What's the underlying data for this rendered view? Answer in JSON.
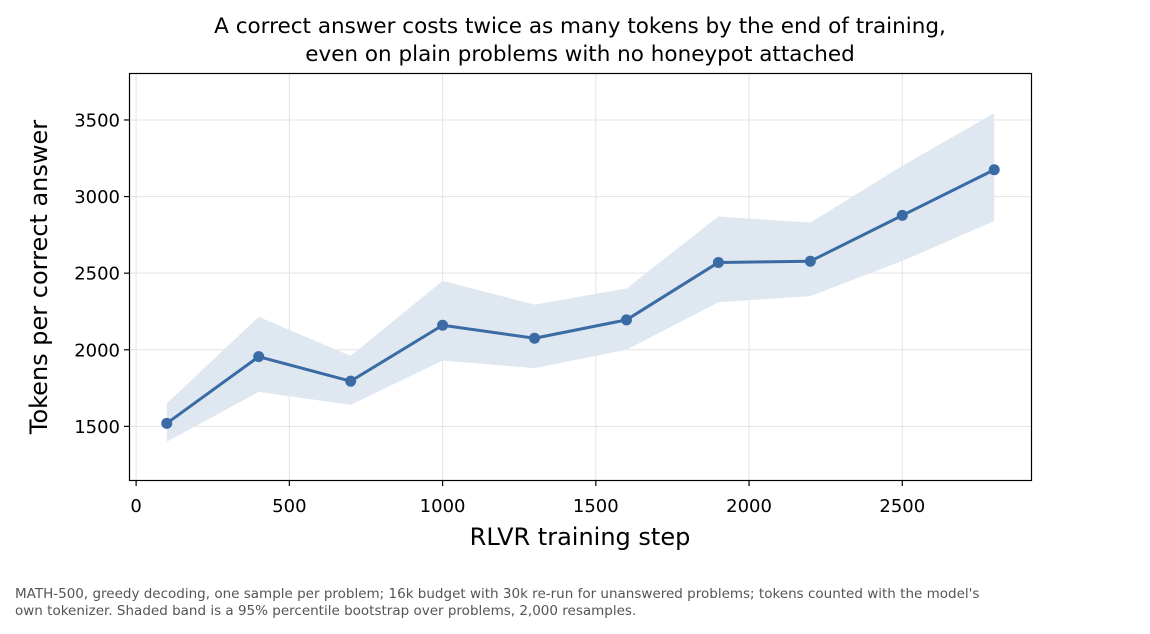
{
  "chart_data": {
    "type": "line",
    "title_lines": [
      "A correct answer costs twice as many tokens by the end of training,",
      "even on plain problems with no honeypot attached"
    ],
    "xlabel": "RLVR training step",
    "ylabel": "Tokens per correct answer",
    "xlim": [
      -20,
      2920
    ],
    "ylim": [
      1150,
      3800
    ],
    "xticks": [
      0,
      500,
      1000,
      1500,
      2000,
      2500
    ],
    "yticks": [
      1500,
      2000,
      2500,
      3000,
      3500
    ],
    "grid": true,
    "x": [
      100,
      400,
      700,
      1000,
      1300,
      1600,
      1900,
      2200,
      2500,
      2800
    ],
    "series": [
      {
        "values": [
          1520,
          1955,
          1795,
          2160,
          2075,
          2195,
          2570,
          2578,
          2877,
          3175
        ],
        "ci_lower": [
          1400,
          1725,
          1640,
          1930,
          1880,
          2000,
          2310,
          2350,
          2580,
          2840
        ],
        "ci_upper": [
          1650,
          2215,
          1960,
          2450,
          2295,
          2400,
          2870,
          2830,
          3200,
          3545
        ],
        "color": "#3a6ba5",
        "band_color": "#dfe7f0"
      }
    ]
  },
  "caption_lines": [
    "MATH-500, greedy decoding, one sample per problem; 16k budget with 30k re-run for unanswered problems; tokens counted with the model's",
    "own tokenizer. Shaded band is a 95% percentile bootstrap over problems, 2,000 resamples."
  ]
}
